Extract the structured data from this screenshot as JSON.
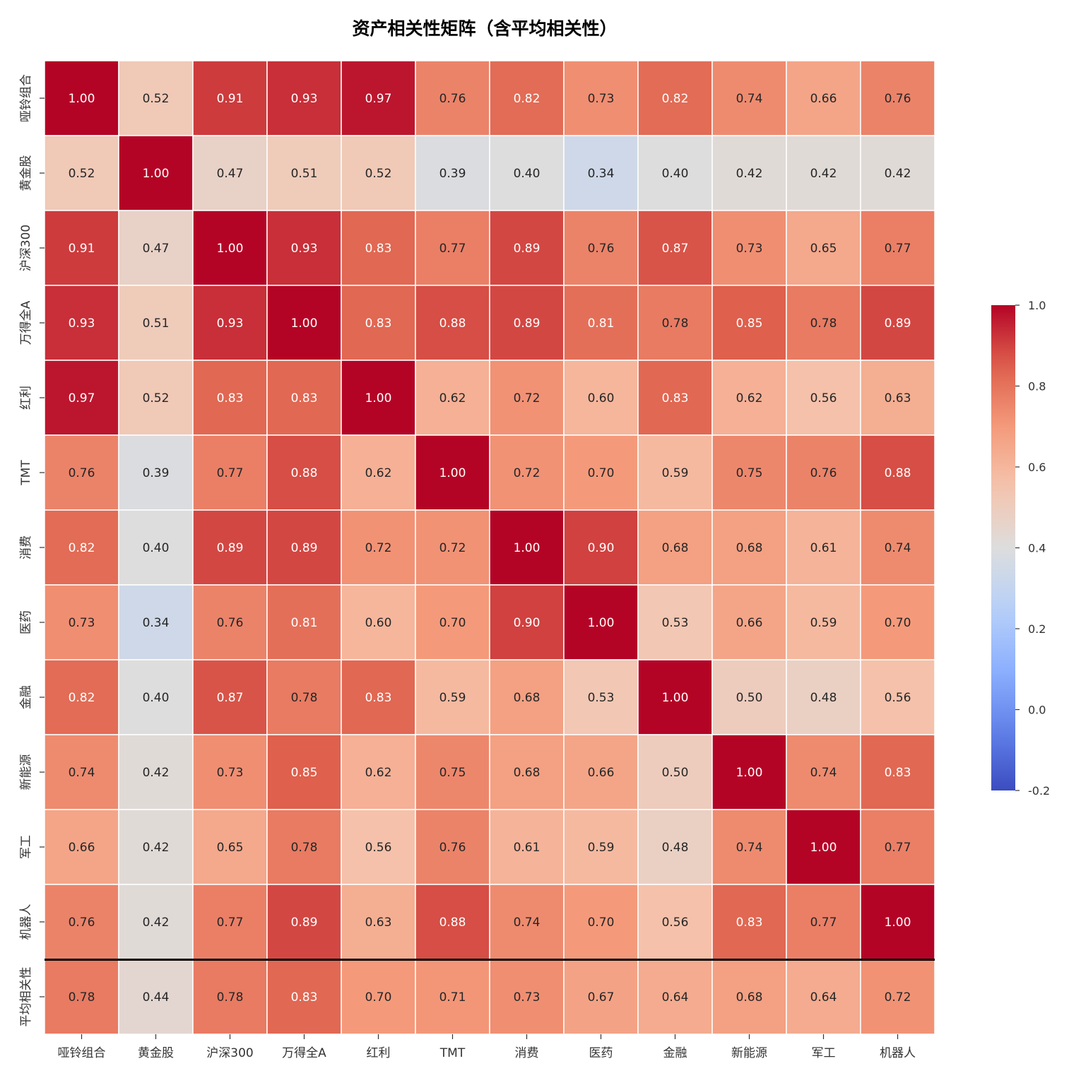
{
  "chart_data": {
    "type": "heatmap",
    "title": "资产相关性矩阵（含平均相关性）",
    "colormap": "coolwarm",
    "vmin": -0.2,
    "vmax": 1.0,
    "x_labels": [
      "哑铃组合",
      "黄金股",
      "沪深300",
      "万得全A",
      "红利",
      "TMT",
      "消费",
      "医药",
      "金融",
      "新能源",
      "军工",
      "机器人"
    ],
    "y_labels": [
      "哑铃组合",
      "黄金股",
      "沪深300",
      "万得全A",
      "红利",
      "TMT",
      "消费",
      "医药",
      "金融",
      "新能源",
      "军工",
      "机器人",
      "平均相关性"
    ],
    "values": [
      [
        1.0,
        0.52,
        0.91,
        0.93,
        0.97,
        0.76,
        0.82,
        0.73,
        0.82,
        0.74,
        0.66,
        0.76
      ],
      [
        0.52,
        1.0,
        0.47,
        0.51,
        0.52,
        0.39,
        0.4,
        0.34,
        0.4,
        0.42,
        0.42,
        0.42
      ],
      [
        0.91,
        0.47,
        1.0,
        0.93,
        0.83,
        0.77,
        0.89,
        0.76,
        0.87,
        0.73,
        0.65,
        0.77
      ],
      [
        0.93,
        0.51,
        0.93,
        1.0,
        0.83,
        0.88,
        0.89,
        0.81,
        0.78,
        0.85,
        0.78,
        0.89
      ],
      [
        0.97,
        0.52,
        0.83,
        0.83,
        1.0,
        0.62,
        0.72,
        0.6,
        0.83,
        0.62,
        0.56,
        0.63
      ],
      [
        0.76,
        0.39,
        0.77,
        0.88,
        0.62,
        1.0,
        0.72,
        0.7,
        0.59,
        0.75,
        0.76,
        0.88
      ],
      [
        0.82,
        0.4,
        0.89,
        0.89,
        0.72,
        0.72,
        1.0,
        0.9,
        0.68,
        0.68,
        0.61,
        0.74
      ],
      [
        0.73,
        0.34,
        0.76,
        0.81,
        0.6,
        0.7,
        0.9,
        1.0,
        0.53,
        0.66,
        0.59,
        0.7
      ],
      [
        0.82,
        0.4,
        0.87,
        0.78,
        0.83,
        0.59,
        0.68,
        0.53,
        1.0,
        0.5,
        0.48,
        0.56
      ],
      [
        0.74,
        0.42,
        0.73,
        0.85,
        0.62,
        0.75,
        0.68,
        0.66,
        0.5,
        1.0,
        0.74,
        0.83
      ],
      [
        0.66,
        0.42,
        0.65,
        0.78,
        0.56,
        0.76,
        0.61,
        0.59,
        0.48,
        0.74,
        1.0,
        0.77
      ],
      [
        0.76,
        0.42,
        0.77,
        0.89,
        0.63,
        0.88,
        0.74,
        0.7,
        0.56,
        0.83,
        0.77,
        1.0
      ],
      [
        0.78,
        0.44,
        0.78,
        0.83,
        0.7,
        0.71,
        0.73,
        0.67,
        0.64,
        0.68,
        0.64,
        0.72
      ]
    ],
    "colorbar": {
      "ticks": [
        1.0,
        0.8,
        0.6,
        0.4,
        0.2,
        0.0,
        -0.2
      ],
      "tick_labels": [
        "1.0",
        "0.8",
        "0.6",
        "0.4",
        "0.2",
        "0.0",
        "-0.2"
      ]
    },
    "separator_line_above_row": "平均相关性"
  }
}
